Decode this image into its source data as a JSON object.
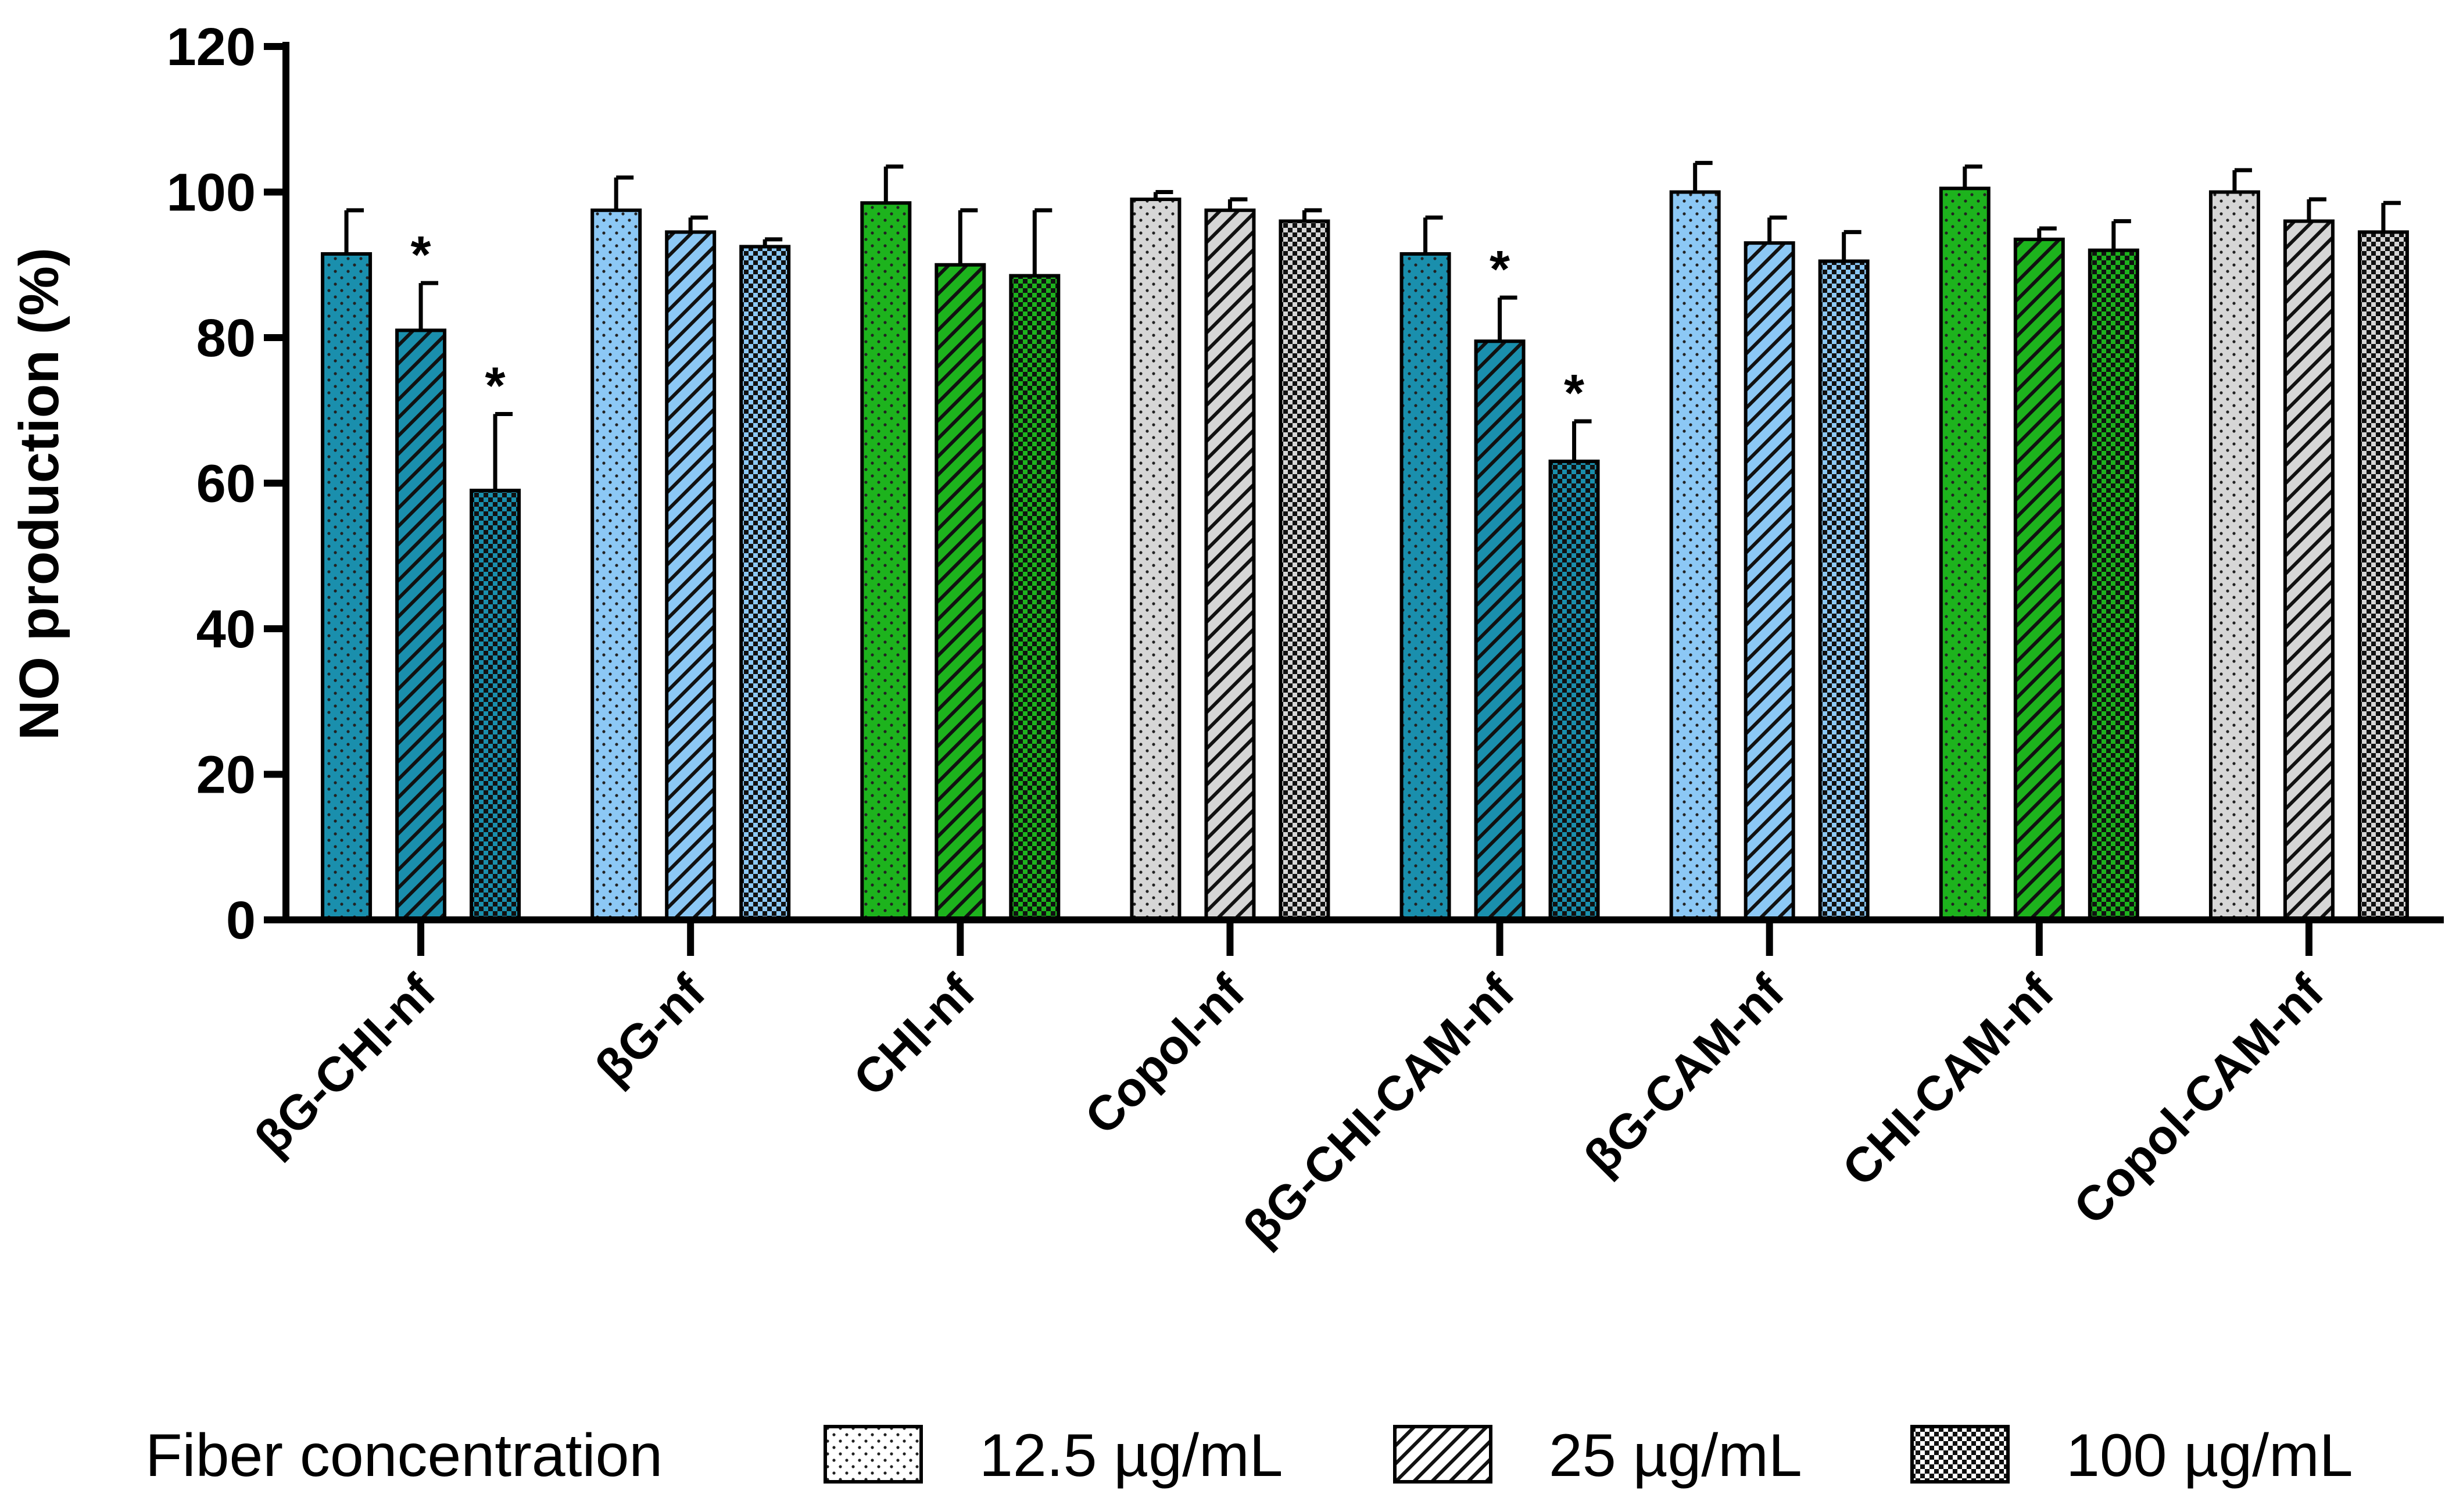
{
  "chart_data": {
    "type": "bar",
    "title": "",
    "xlabel": "",
    "ylabel": "NO production (%)",
    "ylim": [
      0,
      120
    ],
    "yticks": [
      "0",
      "20",
      "40",
      "60",
      "80",
      "100",
      "120"
    ],
    "categories": [
      "βG-CHI-nf",
      "βG-nf",
      "CHI-nf",
      "Copol-nf",
      "βG-CHI-CAM-nf",
      "βG-CAM-nf",
      "CHI-CAM-nf",
      "Copol-CAM-nf"
    ],
    "category_colors": [
      "#1a8fad",
      "#8cc8f5",
      "#1db31d",
      "#d6d6d6",
      "#1a8fad",
      "#8cc8f5",
      "#1db31d",
      "#d6d6d6"
    ],
    "series": [
      {
        "name": "12.5 µg/mL",
        "pattern": "dots",
        "values": [
          91.5,
          97.5,
          98.5,
          99,
          91.5,
          100,
          100.5,
          100
        ],
        "errors": [
          6,
          4.5,
          5,
          1,
          5,
          4,
          3,
          3
        ],
        "significance": [
          "",
          "",
          "",
          "",
          "",
          "",
          "",
          ""
        ]
      },
      {
        "name": "25 µg/mL",
        "pattern": "hatch",
        "values": [
          81,
          94.5,
          90,
          97.5,
          79.5,
          93,
          93.5,
          96
        ],
        "errors": [
          6.5,
          2,
          7.5,
          1.5,
          6,
          3.5,
          1.5,
          3
        ],
        "significance": [
          "*",
          "",
          "",
          "",
          "*",
          "",
          "",
          ""
        ]
      },
      {
        "name": "100 µg/mL",
        "pattern": "checker",
        "values": [
          59,
          92.5,
          88.5,
          96,
          63,
          90.5,
          92,
          94.5
        ],
        "errors": [
          10.5,
          1,
          9,
          1.5,
          5.5,
          4,
          4,
          4
        ],
        "significance": [
          "*",
          "",
          "",
          "",
          "*",
          "",
          "",
          ""
        ]
      }
    ],
    "legend": {
      "title": "Fiber concentration",
      "position": "bottom",
      "items": [
        "12.5 µg/mL",
        "25 µg/mL",
        "100 µg/mL"
      ]
    }
  }
}
